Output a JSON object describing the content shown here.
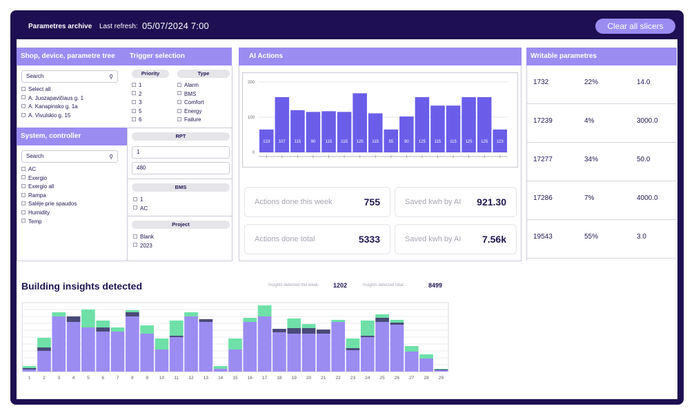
{
  "header": {
    "title": "Parametres archive",
    "refresh_label": "Last refresh:",
    "refresh_value": "05/07/2024  7:00",
    "clear_button": "Clear all slicers"
  },
  "shop_tree": {
    "title": "Shop, device, parametre tree",
    "search_placeholder": "Search",
    "items": [
      "Select all",
      "A. Juozapavičiaus g. 1",
      "A. Kanapinsko g.  1a",
      "A. Vivulskio g. 15"
    ]
  },
  "system_controller": {
    "title": "System, controller",
    "search_placeholder": "Search",
    "items": [
      "AC",
      "Exergio",
      "Exergio all",
      "Rampa",
      "Saléje prie spaudos",
      "Humidity",
      "Temp"
    ]
  },
  "trigger": {
    "title": "Trigger selection",
    "priority_label": "Priority",
    "priority_items": [
      "1",
      "2",
      "3",
      "5",
      "6"
    ],
    "type_label": "Type",
    "type_items": [
      "Alarm",
      "BMS",
      "Comfort",
      "Energy",
      "Failure"
    ],
    "rpt_label": "RPT",
    "rpt_min": "1",
    "rpt_max": "480",
    "bms_label": "BMS",
    "bms_items": [
      "1",
      "AC"
    ],
    "project_label": "Project",
    "project_items": [
      "Blank",
      "2023"
    ]
  },
  "ai_actions": {
    "title": "AI Actions",
    "kpis": [
      {
        "label": "Actions done this week",
        "value": "755"
      },
      {
        "label": "Saved kwh by AI",
        "value": "921.30"
      },
      {
        "label": "Actions done total",
        "value": "5333"
      },
      {
        "label": "Saved kwh by AI",
        "value": "7.56k"
      }
    ]
  },
  "writable": {
    "title": "Writable parametres",
    "rows": [
      [
        "1732",
        "22%",
        "14.0"
      ],
      [
        "17239",
        "4%",
        "3000.0"
      ],
      [
        "17277",
        "34%",
        "50.0"
      ],
      [
        "17286",
        "7%",
        "4000.0"
      ],
      [
        "19543",
        "55%",
        "3.0"
      ]
    ]
  },
  "insights": {
    "title": "Building insights detected",
    "week_label": "Insights detected this week:",
    "week_value": "1202",
    "total_label": "Insights detected total:",
    "total_value": "8499"
  },
  "colors": {
    "accent": "#9b8cf2",
    "header_bg": "#1e0f52",
    "bar_blue": "#6a5ee9",
    "bar_green": "#6ee0a8",
    "bar_dark": "#4a4a78"
  },
  "chart_data": [
    {
      "type": "bar",
      "title": "",
      "values": [
        123,
        107,
        115,
        90,
        115,
        115,
        125,
        115,
        55,
        90,
        125,
        115,
        115,
        125,
        125,
        123
      ],
      "heights": [
        65,
        157,
        120,
        115,
        117,
        115,
        168,
        111,
        65,
        102,
        157,
        133,
        133,
        157,
        157,
        65
      ],
      "yticks": [
        "0",
        "100",
        "200"
      ],
      "ylim": [
        0,
        200
      ]
    },
    {
      "type": "bar",
      "title": "",
      "categories": [
        "1",
        "2",
        "3",
        "4",
        "5",
        "6",
        "7",
        "8",
        "9",
        "10",
        "11",
        "12",
        "13",
        "14",
        "15",
        "16",
        "17",
        "18",
        "19",
        "20",
        "21",
        "22",
        "23",
        "24",
        "25",
        "26",
        "27",
        "28",
        "29"
      ],
      "series": [
        {
          "values": [
            3,
            30,
            80,
            72,
            64,
            58,
            58,
            80,
            55,
            32,
            50,
            80,
            72,
            4,
            32,
            72,
            80,
            57,
            55,
            55,
            55,
            72,
            31,
            50,
            72,
            68,
            29,
            19,
            2
          ]
        },
        {
          "values": [
            2,
            5,
            0,
            8,
            0,
            6,
            0,
            6,
            0,
            0,
            2,
            0,
            4,
            0,
            0,
            0,
            0,
            5,
            8,
            8,
            6,
            0,
            3,
            2,
            6,
            3,
            0,
            0,
            1
          ]
        },
        {
          "values": [
            3,
            14,
            6,
            0,
            26,
            10,
            6,
            3,
            12,
            16,
            22,
            6,
            0,
            4,
            16,
            6,
            16,
            0,
            14,
            6,
            0,
            3,
            14,
            22,
            5,
            4,
            8,
            6,
            1
          ]
        }
      ],
      "ylim": [
        0,
        100
      ]
    }
  ]
}
